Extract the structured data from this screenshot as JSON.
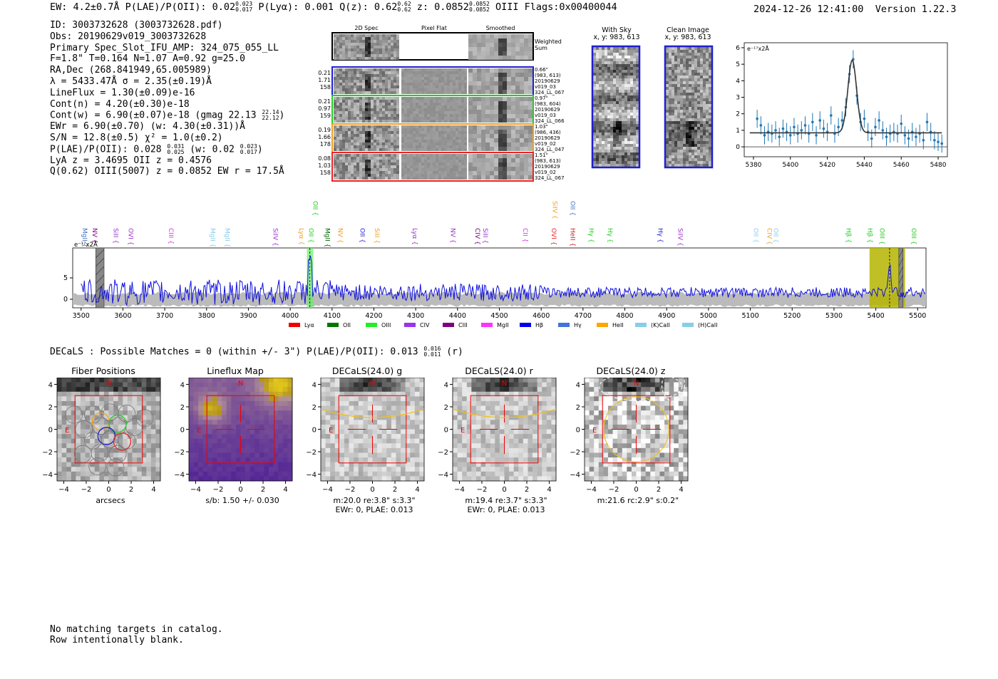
{
  "header": {
    "left_parts": [
      "EW: 4.2±0.7Å  P(LAE)/P(OII): 0.02",
      "0.023",
      "0.017",
      "  P(Lyα): 0.001  Q(z): 0.62",
      "0.62",
      "0.62",
      "  z: 0.0852",
      "0.0852",
      "0.0852",
      " OIII  Flags:0x00400044"
    ],
    "timestamp": "2024-12-26 12:41:00",
    "version": "Version 1.22.3"
  },
  "info": {
    "id": "ID: 3003732628 (3003732628.pdf)",
    "obs": "Obs: 20190629v019_3003732628",
    "primary": "Primary Spec_Slot_IFU_AMP: 324_075_055_LL",
    "params": "F=1.8\"  T=0.164  N=1.07  A=0.92  g=25.0",
    "radec": "RA,Dec (268.841949,65.005989)",
    "lambda": "λ = 5433.47Å  σ = 2.35(±0.19)Å",
    "lineflux": "LineFlux = 1.30(±0.09)e-16",
    "cont_n": "Cont(n) = 4.20(±0.30)e-18",
    "cont_w": "Cont(w) = 6.90(±0.07)e-18 (gmag 22.13",
    "cont_w_hi": "22.14",
    "cont_w_lo": "22.12",
    "cont_w_close": ")",
    "ewr": "EWr = 6.90(±0.70) (w: 4.30(±0.31))Å",
    "sn": "S/N = 12.8(±0.5)  χ² = 1.0(±0.2)",
    "plae": "P(LAE)/P(OII): 0.028",
    "plae_hi": "0.031",
    "plae_lo": "0.025",
    "plae_w": " (w: 0.02",
    "plae_w_hi": "0.023",
    "plae_w_lo": "0.017",
    "plae_close": ")",
    "lya": "LyA z = 3.4695  OII z = 0.4576",
    "q": "Q(0.62) OIII(5007) z = 0.0852  EW r = 17.5Å"
  },
  "stamps": {
    "headers": [
      "2D Spec",
      "Pixel Flat",
      "Smoothed"
    ],
    "weighted_label": "Weighted Sum",
    "rows": [
      {
        "left": [
          "0.21",
          "1.71",
          "158"
        ],
        "right": [
          "0.66\"",
          "(983, 613)",
          "20190629",
          "v019_03",
          "324_LL_067"
        ],
        "color": "#1f1fd0"
      },
      {
        "left": [
          "0.21",
          "0.97",
          "159"
        ],
        "right": [
          "0.97\"",
          "(983, 604)",
          "20190629",
          "v019_03",
          "324_LL_066"
        ],
        "color": "#22cc22"
      },
      {
        "left": [
          "0.19",
          "1.66",
          "178"
        ],
        "right": [
          "1.03\"",
          "(986, 436)",
          "20190629",
          "v019_02",
          "324_LL_047"
        ],
        "color": "#f0a020"
      },
      {
        "left": [
          "0.08",
          "1.03",
          "158"
        ],
        "right": [
          "1.51\"",
          "(983, 613)",
          "20190629",
          "v019_02",
          "324_LL_067"
        ],
        "color": "#ee2222"
      }
    ],
    "with_sky_title": "With Sky",
    "with_sky_coords": "x, y: 983, 613",
    "clean_title": "Clean Image",
    "clean_coords": "x, y: 983, 613"
  },
  "chart_data": [
    {
      "type": "line",
      "name": "line-fit-zoom",
      "ylabel": "e⁻¹⁷x2Å",
      "xlim": [
        5375,
        5485
      ],
      "ylim": [
        -0.6,
        6.3
      ],
      "xticks": [
        5380,
        5400,
        5420,
        5440,
        5460,
        5480
      ],
      "yticks": [
        0,
        1,
        2,
        3,
        4,
        5,
        6
      ],
      "fit": {
        "center": 5433.47,
        "sigma": 2.35,
        "amplitude": 4.4,
        "continuum": 0.85
      },
      "points_x": [
        5382,
        5384,
        5386,
        5388,
        5390,
        5392,
        5394,
        5396,
        5398,
        5400,
        5402,
        5404,
        5406,
        5408,
        5410,
        5412,
        5414,
        5416,
        5418,
        5420,
        5422,
        5424,
        5426,
        5428,
        5430,
        5432,
        5434,
        5436,
        5438,
        5440,
        5442,
        5444,
        5446,
        5448,
        5450,
        5452,
        5454,
        5456,
        5458,
        5460,
        5462,
        5464,
        5466,
        5468,
        5470,
        5472,
        5474,
        5476,
        5478,
        5480,
        5482
      ],
      "points_y": [
        1.7,
        1.3,
        0.7,
        0.9,
        0.8,
        1.0,
        0.6,
        1.1,
        0.9,
        0.7,
        1.2,
        0.8,
        1.0,
        1.3,
        0.8,
        1.5,
        0.7,
        1.6,
        1.1,
        0.9,
        1.9,
        0.8,
        1.2,
        1.6,
        2.4,
        4.4,
        5.3,
        3.1,
        1.5,
        1.7,
        0.9,
        0.5,
        1.2,
        1.6,
        1.0,
        0.6,
        0.8,
        0.9,
        0.8,
        1.4,
        0.7,
        0.5,
        0.9,
        0.6,
        0.8,
        0.4,
        1.5,
        0.9,
        0.4,
        0.3,
        0.2
      ],
      "errors": 0.55
    },
    {
      "type": "line",
      "name": "full-spectrum",
      "ylabel": "e⁻¹⁷x2Å",
      "xlim": [
        3480,
        5520
      ],
      "ylim": [
        -2,
        12
      ],
      "xticks": [
        3500,
        3600,
        3700,
        3800,
        3900,
        4000,
        4100,
        4200,
        4300,
        4400,
        4500,
        4600,
        4700,
        4800,
        4900,
        5000,
        5100,
        5200,
        5300,
        5400,
        5500
      ],
      "yticks": [
        0,
        5
      ],
      "emission_peaks": [
        {
          "x": 4047,
          "height": 11
        },
        {
          "x": 5433,
          "height": 7
        }
      ],
      "highlight_green": [
        4040,
        4055
      ],
      "highlight_olive": [
        5385,
        5470
      ],
      "dashed_lines": [
        4047,
        5433
      ],
      "gray_bands": [
        [
          3535,
          3555
        ],
        [
          5455,
          5465
        ]
      ],
      "line_labels": [
        {
          "text": "MgII",
          "x": 3504,
          "color": "#4472c4",
          "row": 1
        },
        {
          "text": "NV",
          "x": 3528,
          "color": "#800080",
          "row": 1
        },
        {
          "text": "SiII",
          "x": 3578,
          "color": "#9933cc",
          "row": 2
        },
        {
          "text": "OVI",
          "x": 3614,
          "color": "#9933cc",
          "row": 2
        },
        {
          "text": "CIII",
          "x": 3710,
          "color": "#e030e0",
          "row": 2
        },
        {
          "text": "MgII",
          "x": 3810,
          "color": "#87ceeb",
          "row": 1
        },
        {
          "text": "MgII",
          "x": 3845,
          "color": "#87ceeb",
          "row": 1
        },
        {
          "text": "SiIV",
          "x": 3960,
          "color": "#9933cc",
          "row": 2
        },
        {
          "text": "Lyα",
          "x": 4022,
          "color": "#f0a020",
          "row": 2
        },
        {
          "text": "OII",
          "x": 4045,
          "color": "#22cc22",
          "row": 2
        },
        {
          "text": "OII",
          "x": 4055,
          "color": "#22cc22",
          "row": 0
        },
        {
          "text": "MgII",
          "x": 4084,
          "color": "#006400",
          "row": 2
        },
        {
          "text": "NV",
          "x": 4115,
          "color": "#f0a020",
          "row": 2
        },
        {
          "text": "OII",
          "x": 4168,
          "color": "#1f1fd0",
          "row": 2
        },
        {
          "text": "SiII",
          "x": 4203,
          "color": "#f0a020",
          "row": 2
        },
        {
          "text": "Lyα",
          "x": 4293,
          "color": "#9933cc",
          "row": 2
        },
        {
          "text": "NV",
          "x": 4384,
          "color": "#9933cc",
          "row": 2
        },
        {
          "text": "CIV",
          "x": 4443,
          "color": "#800080",
          "row": 2
        },
        {
          "text": "SiII",
          "x": 4462,
          "color": "#9933cc",
          "row": 2
        },
        {
          "text": "CII",
          "x": 4557,
          "color": "#e030e0",
          "row": 2
        },
        {
          "text": "SiIV",
          "x": 4628,
          "color": "#f0a020",
          "row": 0
        },
        {
          "text": "OVI",
          "x": 4625,
          "color": "#ee2222",
          "row": 2
        },
        {
          "text": "OII",
          "x": 4670,
          "color": "#4472c4",
          "row": 0
        },
        {
          "text": "HeII",
          "x": 4670,
          "color": "#cc2222",
          "row": 2
        },
        {
          "text": "Hγ",
          "x": 4715,
          "color": "#22cc22",
          "row": 2
        },
        {
          "text": "Hγ",
          "x": 4760,
          "color": "#22cc22",
          "row": 2
        },
        {
          "text": "Hγ",
          "x": 4880,
          "color": "#1f1fd0",
          "row": 2
        },
        {
          "text": "SiIV",
          "x": 4928,
          "color": "#9933cc",
          "row": 2
        },
        {
          "text": "OII",
          "x": 5108,
          "color": "#87ceeb",
          "row": 2
        },
        {
          "text": "CIV",
          "x": 5141,
          "color": "#f0a020",
          "row": 2
        },
        {
          "text": "OII",
          "x": 5156,
          "color": "#87ceeb",
          "row": 2
        },
        {
          "text": "Hβ",
          "x": 5330,
          "color": "#22cc22",
          "row": 2
        },
        {
          "text": "Hβ",
          "x": 5381,
          "color": "#22cc22",
          "row": 2
        },
        {
          "text": "OIII",
          "x": 5410,
          "color": "#22cc22",
          "row": 2
        },
        {
          "text": "OIII",
          "x": 5486,
          "color": "#22cc22",
          "row": 2
        }
      ],
      "legend": [
        {
          "label": "Lyα",
          "color": "#ee0000"
        },
        {
          "label": "OII",
          "color": "#007700"
        },
        {
          "label": "OIII",
          "color": "#22ee22"
        },
        {
          "label": "CIV",
          "color": "#9933ee"
        },
        {
          "label": "CIII",
          "color": "#800080"
        },
        {
          "label": "MgII",
          "color": "#ff33ff"
        },
        {
          "label": "Hβ",
          "color": "#0000ee"
        },
        {
          "label": "Hγ",
          "color": "#4472dd"
        },
        {
          "label": "HeII",
          "color": "#ffa500"
        },
        {
          "label": "(K)CaII",
          "color": "#87ceeb"
        },
        {
          "label": "(H)CaII",
          "color": "#87ceeb"
        }
      ]
    }
  ],
  "decals": {
    "title_main": "DECaLS : Possible Matches = 0 (within +/- 3\")  P(LAE)/P(OII): 0.013",
    "title_hi": "0.016",
    "title_lo": "0.011",
    "title_end": " (r)",
    "cutouts": [
      {
        "title": "Fiber Positions",
        "sub": [
          "arcsecs"
        ],
        "kind": "fiber"
      },
      {
        "title": "Lineflux Map",
        "sub": [
          "s/b: 1.50 +/- 0.030"
        ],
        "kind": "lineflux"
      },
      {
        "title": "DECaLS(24.0) g",
        "sub": [
          "m:20.0  re:3.8\"  s:3.3\"",
          "EWr: 0, PLAE: 0.013"
        ],
        "kind": "g"
      },
      {
        "title": "DECaLS(24.0) r",
        "sub": [
          "m:19.4  re:3.7\"  s:3.3\"",
          "EWr: 0, PLAE: 0.013"
        ],
        "kind": "r"
      },
      {
        "title": "DECaLS(24.0) z",
        "sub": [
          "m:21.6 rc:2.9\"  s:0.2\""
        ],
        "kind": "z"
      }
    ],
    "north": "N",
    "east": "E",
    "ticks": [
      "−4",
      "−2",
      "0",
      "2",
      "4"
    ]
  },
  "footer": {
    "line1": "No matching targets in catalog.",
    "line2": "Row intentionally blank."
  }
}
